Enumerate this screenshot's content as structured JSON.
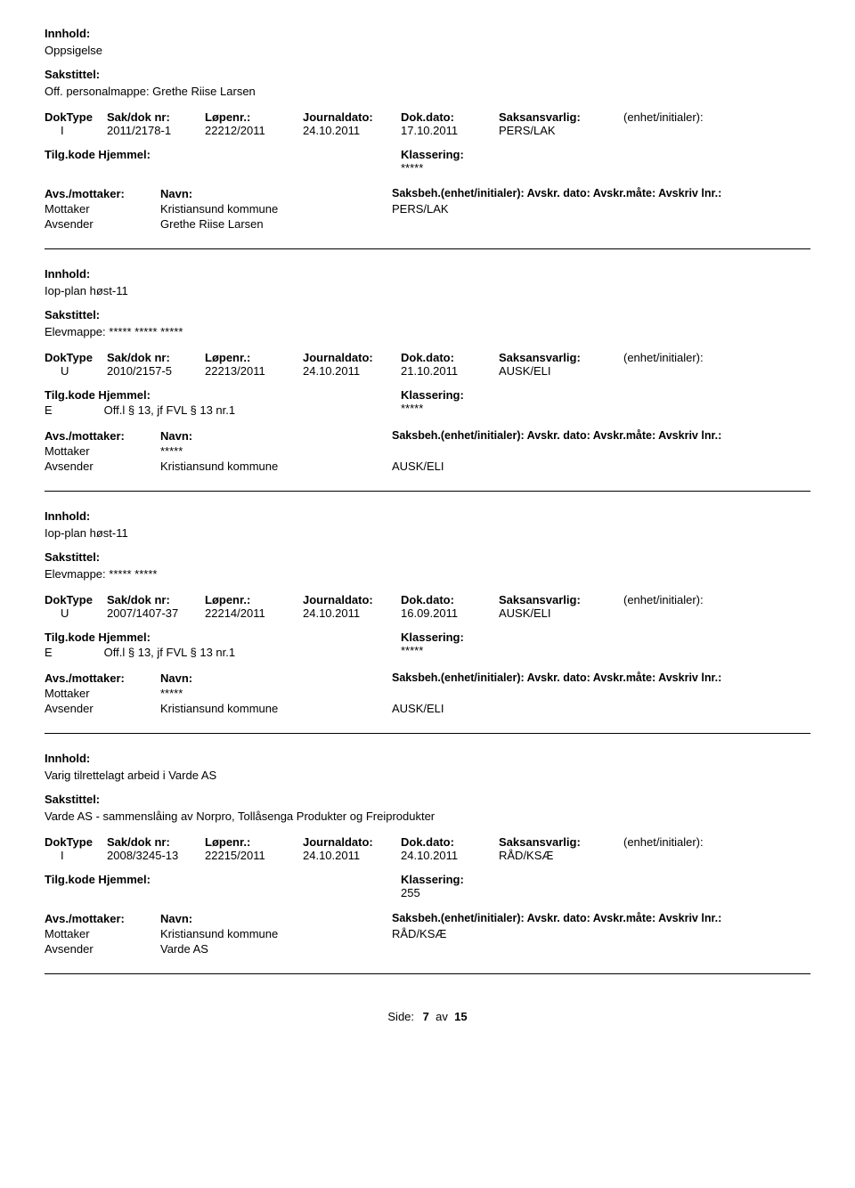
{
  "labels": {
    "innhold": "Innhold:",
    "sakstittel": "Sakstittel:",
    "doktype": "DokType",
    "sakdok": "Sak/dok nr:",
    "lopenr": "Løpenr.:",
    "journaldato": "Journaldato:",
    "dokdato": "Dok.dato:",
    "saksansvarlig": "Saksansvarlig:",
    "enhet_initialer": "(enhet/initialer):",
    "tilg_hjemmel": "Tilg.kode Hjemmel:",
    "klassering": "Klassering:",
    "avs_mottaker": "Avs./mottaker:",
    "navn": "Navn:",
    "saksbeh_line": "Saksbeh.(enhet/initialer): Avskr. dato:  Avskr.måte: Avskriv lnr.:",
    "mottaker": "Mottaker",
    "avsender": "Avsender",
    "side": "Side:",
    "av": "av"
  },
  "footer": {
    "page": "7",
    "total": "15"
  },
  "records": [
    {
      "innhold": "Oppsigelse",
      "sakstittel": "Off. personalmappe: Grethe Riise Larsen",
      "doktype": "I",
      "sakdok": "2011/2178-1",
      "lopenr": "22212/2011",
      "journaldato": "24.10.2011",
      "dokdato": "17.10.2011",
      "saksansvarlig": "PERS/LAK",
      "tilgkode": "",
      "hjemmel": "",
      "klassering": "*****",
      "parties": [
        {
          "role": "Mottaker",
          "name": "Kristiansund kommune",
          "saksbeh": "PERS/LAK"
        },
        {
          "role": "Avsender",
          "name": "Grethe Riise Larsen",
          "saksbeh": ""
        }
      ]
    },
    {
      "innhold": "Iop-plan høst-11",
      "sakstittel": "Elevmappe: ***** ***** *****",
      "doktype": "U",
      "sakdok": "2010/2157-5",
      "lopenr": "22213/2011",
      "journaldato": "24.10.2011",
      "dokdato": "21.10.2011",
      "saksansvarlig": "AUSK/ELI",
      "tilgkode": "E",
      "hjemmel": "Off.l § 13, jf FVL § 13 nr.1",
      "klassering": "*****",
      "parties": [
        {
          "role": "Mottaker",
          "name": "*****",
          "saksbeh": ""
        },
        {
          "role": "Avsender",
          "name": "Kristiansund kommune",
          "saksbeh": "AUSK/ELI"
        }
      ]
    },
    {
      "innhold": "Iop-plan høst-11",
      "sakstittel": "Elevmappe: ***** *****",
      "doktype": "U",
      "sakdok": "2007/1407-37",
      "lopenr": "22214/2011",
      "journaldato": "24.10.2011",
      "dokdato": "16.09.2011",
      "saksansvarlig": "AUSK/ELI",
      "tilgkode": "E",
      "hjemmel": "Off.l § 13, jf FVL § 13 nr.1",
      "klassering": "*****",
      "parties": [
        {
          "role": "Mottaker",
          "name": "*****",
          "saksbeh": ""
        },
        {
          "role": "Avsender",
          "name": "Kristiansund kommune",
          "saksbeh": "AUSK/ELI"
        }
      ]
    },
    {
      "innhold": "Varig tilrettelagt arbeid i Varde AS",
      "sakstittel": "Varde AS  - sammenslåing av Norpro, Tollåsenga Produkter og Freiprodukter",
      "doktype": "I",
      "sakdok": "2008/3245-13",
      "lopenr": "22215/2011",
      "journaldato": "24.10.2011",
      "dokdato": "24.10.2011",
      "saksansvarlig": "RÅD/KSÆ",
      "tilgkode": "",
      "hjemmel": "",
      "klassering": "255",
      "parties": [
        {
          "role": "Mottaker",
          "name": "Kristiansund kommune",
          "saksbeh": "RÅD/KSÆ"
        },
        {
          "role": "Avsender",
          "name": "Varde AS",
          "saksbeh": ""
        }
      ]
    }
  ]
}
